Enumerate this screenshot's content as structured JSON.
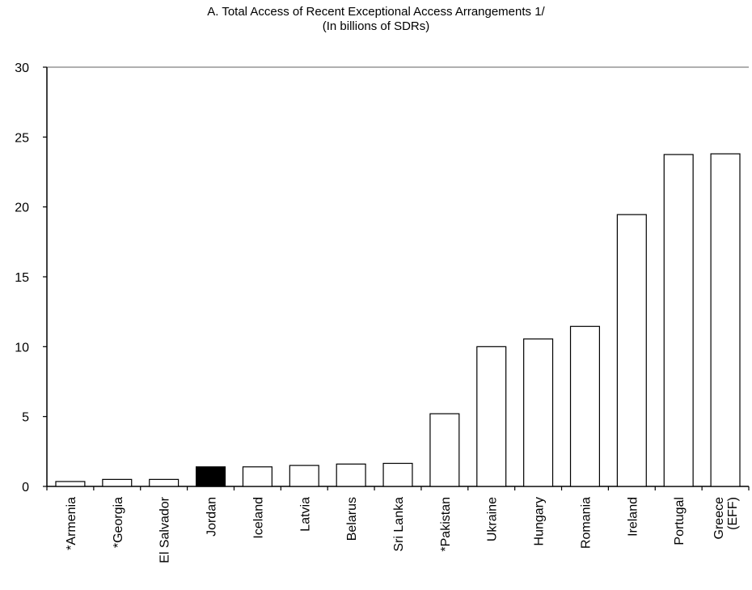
{
  "chart_data": {
    "type": "bar",
    "title": "A. Total Access of Recent Exceptional Access Arrangements 1/",
    "subtitle": "(In billions of SDRs)",
    "xlabel": "",
    "ylabel": "",
    "ylim": [
      0,
      30
    ],
    "yticks": [
      0,
      5,
      10,
      15,
      20,
      25,
      30
    ],
    "grid": false,
    "legend": "none",
    "categories": [
      "*Armenia",
      "*Georgia",
      "El Salvador",
      "Jordan",
      "Iceland",
      "Latvia",
      "Belarus",
      "Sri Lanka",
      "*Pakistan",
      "Ukraine",
      "Hungary",
      "Romania",
      "Ireland",
      "Portugal",
      "Greece (EFF)"
    ],
    "values": [
      0.35,
      0.5,
      0.5,
      1.4,
      1.4,
      1.5,
      1.6,
      1.65,
      5.2,
      10.0,
      10.55,
      11.45,
      19.45,
      23.75,
      23.8
    ],
    "highlight_category": "Jordan",
    "colors": {
      "bar_fill": "#ffffff",
      "highlight_fill": "#000000",
      "bar_stroke": "#000000",
      "axis": "#000000",
      "top_line": "#808080"
    }
  }
}
